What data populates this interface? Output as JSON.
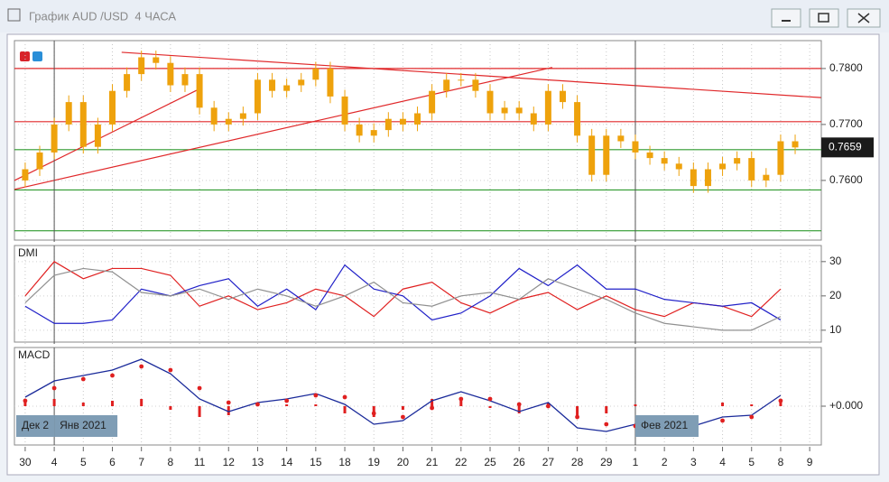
{
  "window": {
    "title": "График AUD /USD  4 ЧАСА"
  },
  "chart_data": [
    {
      "type": "candlestick",
      "color": "#eea20c",
      "x": [
        0,
        0.5,
        1,
        1.5,
        2,
        2.5,
        3,
        3.5,
        4,
        4.5,
        5,
        5.5,
        6,
        6.5,
        7,
        7.5,
        8,
        8.5,
        9,
        9.5,
        10,
        10.5,
        11,
        11.5,
        12,
        12.5,
        13,
        13.5,
        14,
        14.5,
        15,
        15.5,
        16,
        16.5,
        17,
        17.5,
        18,
        18.5,
        19,
        19.5,
        20,
        20.5,
        21,
        21.5,
        22,
        22.5,
        23,
        23.5,
        24,
        24.5,
        25,
        25.5,
        26,
        26.5
      ],
      "candles": [
        [
          0.76,
          0.7632,
          0.7588,
          0.762
        ],
        [
          0.762,
          0.7662,
          0.7608,
          0.765
        ],
        [
          0.765,
          0.7712,
          0.7638,
          0.77
        ],
        [
          0.77,
          0.7752,
          0.7688,
          0.774
        ],
        [
          0.774,
          0.7752,
          0.7648,
          0.766
        ],
        [
          0.766,
          0.7712,
          0.7648,
          0.77
        ],
        [
          0.77,
          0.7772,
          0.7688,
          0.776
        ],
        [
          0.776,
          0.7802,
          0.7748,
          0.779
        ],
        [
          0.779,
          0.7832,
          0.7778,
          0.782
        ],
        [
          0.782,
          0.7832,
          0.7798,
          0.781
        ],
        [
          0.781,
          0.7822,
          0.7758,
          0.777
        ],
        [
          0.777,
          0.7802,
          0.7758,
          0.779
        ],
        [
          0.779,
          0.7802,
          0.7718,
          0.773
        ],
        [
          0.773,
          0.7742,
          0.7688,
          0.77
        ],
        [
          0.77,
          0.7722,
          0.7688,
          0.771
        ],
        [
          0.771,
          0.7732,
          0.7698,
          0.772
        ],
        [
          0.772,
          0.7792,
          0.7708,
          0.778
        ],
        [
          0.778,
          0.7792,
          0.7748,
          0.776
        ],
        [
          0.776,
          0.7782,
          0.7748,
          0.777
        ],
        [
          0.777,
          0.7792,
          0.7758,
          0.778
        ],
        [
          0.778,
          0.7812,
          0.7768,
          0.78
        ],
        [
          0.78,
          0.7812,
          0.7738,
          0.775
        ],
        [
          0.775,
          0.7762,
          0.7688,
          0.77
        ],
        [
          0.77,
          0.7712,
          0.7668,
          0.768
        ],
        [
          0.768,
          0.7702,
          0.7668,
          0.769
        ],
        [
          0.769,
          0.7722,
          0.7678,
          0.771
        ],
        [
          0.771,
          0.7722,
          0.7688,
          0.77
        ],
        [
          0.77,
          0.7732,
          0.7688,
          0.772
        ],
        [
          0.772,
          0.7772,
          0.7708,
          0.776
        ],
        [
          0.776,
          0.7792,
          0.7748,
          0.778
        ],
        [
          0.778,
          0.7792,
          0.7768,
          0.778
        ],
        [
          0.778,
          0.7792,
          0.7748,
          0.776
        ],
        [
          0.776,
          0.7772,
          0.7708,
          0.772
        ],
        [
          0.772,
          0.7742,
          0.7708,
          0.773
        ],
        [
          0.773,
          0.7742,
          0.7708,
          0.772
        ],
        [
          0.772,
          0.7732,
          0.7688,
          0.77
        ],
        [
          0.77,
          0.7772,
          0.7688,
          0.776
        ],
        [
          0.776,
          0.7772,
          0.7728,
          0.774
        ],
        [
          0.774,
          0.7752,
          0.7668,
          0.768
        ],
        [
          0.768,
          0.7692,
          0.7598,
          0.761
        ],
        [
          0.761,
          0.7692,
          0.7598,
          0.768
        ],
        [
          0.768,
          0.7692,
          0.7658,
          0.767
        ],
        [
          0.767,
          0.7682,
          0.7638,
          0.765
        ],
        [
          0.765,
          0.7662,
          0.7628,
          0.764
        ],
        [
          0.764,
          0.7652,
          0.7618,
          0.763
        ],
        [
          0.763,
          0.7642,
          0.7608,
          0.762
        ],
        [
          0.762,
          0.7632,
          0.7578,
          0.759
        ],
        [
          0.759,
          0.7632,
          0.7578,
          0.762
        ],
        [
          0.762,
          0.7642,
          0.7608,
          0.763
        ],
        [
          0.763,
          0.7652,
          0.7618,
          0.764
        ],
        [
          0.764,
          0.7652,
          0.7588,
          0.76
        ],
        [
          0.76,
          0.7622,
          0.7588,
          0.761
        ],
        [
          0.761,
          0.7682,
          0.7598,
          0.767
        ],
        [
          0.767,
          0.7682,
          0.7647,
          0.7659
        ]
      ],
      "xlim": [
        -0.37,
        27.4
      ],
      "xticks": [
        {
          "value": 0,
          "label": "30"
        },
        {
          "value": 1,
          "label": "4"
        },
        {
          "value": 2,
          "label": "5"
        },
        {
          "value": 3,
          "label": "6"
        },
        {
          "value": 4,
          "label": "7"
        },
        {
          "value": 5,
          "label": "8"
        },
        {
          "value": 6,
          "label": "11"
        },
        {
          "value": 7,
          "label": "12"
        },
        {
          "value": 8,
          "label": "13"
        },
        {
          "value": 9,
          "label": "14"
        },
        {
          "value": 10,
          "label": "15"
        },
        {
          "value": 11,
          "label": "18"
        },
        {
          "value": 12,
          "label": "19"
        },
        {
          "value": 13,
          "label": "20"
        },
        {
          "value": 14,
          "label": "21"
        },
        {
          "value": 15,
          "label": "22"
        },
        {
          "value": 16,
          "label": "25"
        },
        {
          "value": 17,
          "label": "26"
        },
        {
          "value": 18,
          "label": "27"
        },
        {
          "value": 19,
          "label": "28"
        },
        {
          "value": 20,
          "label": "29"
        },
        {
          "value": 21,
          "label": "1"
        },
        {
          "value": 22,
          "label": "2"
        },
        {
          "value": 23,
          "label": "3"
        },
        {
          "value": 24,
          "label": "4"
        },
        {
          "value": 25,
          "label": "5"
        },
        {
          "value": 26,
          "label": "8"
        },
        {
          "value": 27,
          "label": "9"
        }
      ],
      "ylim": [
        0.7495,
        0.7845
      ],
      "yticks": [
        {
          "value": 0.78,
          "label": "0.7800"
        },
        {
          "value": 0.77,
          "label": "0.7700"
        },
        {
          "value": 0.76,
          "label": "0.7600"
        }
      ],
      "hlines": [
        {
          "value": 0.78,
          "color": "#e0282a"
        },
        {
          "value": 0.7705,
          "color": "#e0282a"
        },
        {
          "value": 0.7655,
          "color": "#2e9a2e"
        },
        {
          "value": 0.7583,
          "color": "#2e9a2e"
        },
        {
          "value": 0.751,
          "color": "#2e9a2e"
        }
      ],
      "trendlines": [
        {
          "x": [
            3.32,
            27.39
          ],
          "y": [
            0.7829,
            0.7748
          ],
          "color": "#e0282a"
        },
        {
          "x": [
            -0.37,
            5.9
          ],
          "y": [
            0.76,
            0.7761
          ],
          "color": "#e0282a"
        },
        {
          "x": [
            -0.37,
            18.14
          ],
          "y": [
            0.7584,
            0.7802
          ],
          "color": "#e0282a"
        }
      ],
      "cursor_x": [
        1,
        21
      ]
    },
    {
      "type": "line",
      "title": "DMI",
      "x": [
        0,
        1,
        2,
        3,
        4,
        5,
        6,
        7,
        8,
        9,
        10,
        11,
        12,
        13,
        14,
        15,
        16,
        17,
        18,
        19,
        20,
        21,
        22,
        23,
        24,
        25,
        26
      ],
      "series": [
        {
          "color": "#e02020",
          "values": [
            20,
            30,
            25,
            28,
            28,
            26,
            17,
            20,
            16,
            18,
            22,
            20,
            14,
            22,
            24,
            18,
            15,
            19,
            21,
            16,
            20,
            16,
            14,
            18,
            17,
            14,
            22
          ]
        },
        {
          "color": "#2020c8",
          "values": [
            17,
            12,
            12,
            13,
            22,
            20,
            23,
            25,
            17,
            22,
            16,
            29,
            22,
            20,
            13,
            15,
            20,
            28,
            23,
            29,
            22,
            22,
            19,
            18,
            17,
            18,
            13
          ]
        },
        {
          "color": "#909090",
          "values": [
            18,
            26,
            28,
            27,
            21,
            20,
            22,
            19,
            22,
            20,
            17,
            20,
            24,
            18,
            17,
            20,
            21,
            19,
            25,
            22,
            19,
            15,
            12,
            11,
            10,
            10,
            14
          ]
        }
      ],
      "ylim": [
        6.8,
        33.9
      ],
      "yticks": [
        30,
        20,
        10
      ]
    },
    {
      "type": "macd",
      "title": "MACD",
      "x": [
        0,
        1,
        2,
        3,
        4,
        5,
        6,
        7,
        8,
        9,
        10,
        11,
        12,
        13,
        14,
        15,
        16,
        17,
        18,
        19,
        20,
        21,
        22,
        23,
        24,
        25,
        26
      ],
      "series": [
        {
          "style": "bars",
          "color": "#e02020",
          "values": [
            0.0002,
            0.0004,
            0.0002,
            0.0003,
            0.0004,
            -0.0002,
            -0.0006,
            -0.0005,
            0.0001,
            0.0001,
            0.0001,
            -0.0004,
            -0.0006,
            -0.0002,
            0.0004,
            0.0004,
            -0.0001,
            -0.0004,
            0.0002,
            -0.0006,
            -0.0004,
            0.0001,
            0,
            0,
            0.0002,
            0.0001,
            0.0003
          ]
        },
        {
          "style": "line",
          "color": "#1a2a9a",
          "values": [
            0.0005,
            0.0014,
            0.0017,
            0.002,
            0.0026,
            0.0018,
            0.0004,
            -0.0003,
            0.0002,
            0.0004,
            0.0007,
            0.0001,
            -0.001,
            -0.0008,
            0.0003,
            0.0008,
            0.0003,
            -0.0003,
            0.0002,
            -0.0012,
            -0.0014,
            -0.001,
            -0.0012,
            -0.0011,
            -0.0006,
            -0.0005,
            0.0006
          ]
        },
        {
          "style": "dots",
          "color": "#e02020",
          "values": [
            0.0003,
            0.001,
            0.0015,
            0.0017,
            0.0022,
            0.002,
            0.001,
            0.0002,
            0.0001,
            0.0003,
            0.0006,
            0.0005,
            -0.0004,
            -0.0006,
            -0.0001,
            0.0004,
            0.0004,
            0.0001,
            0.0,
            -0.0006,
            -0.001,
            -0.0011,
            -0.0012,
            -0.0011,
            -0.0008,
            -0.0006,
            0.0003
          ]
        }
      ],
      "ylim": [
        -0.002,
        0.0031
      ],
      "yticks": [
        {
          "value": 0,
          "label": "+0.000"
        }
      ],
      "date_tags": [
        {
          "text": "Дек 2",
          "x": 1,
          "side": "left"
        },
        {
          "text": "Янв 2021",
          "x": 1,
          "side": "right"
        },
        {
          "text": "Фев 2021",
          "x": 21,
          "side": "right"
        }
      ]
    }
  ]
}
